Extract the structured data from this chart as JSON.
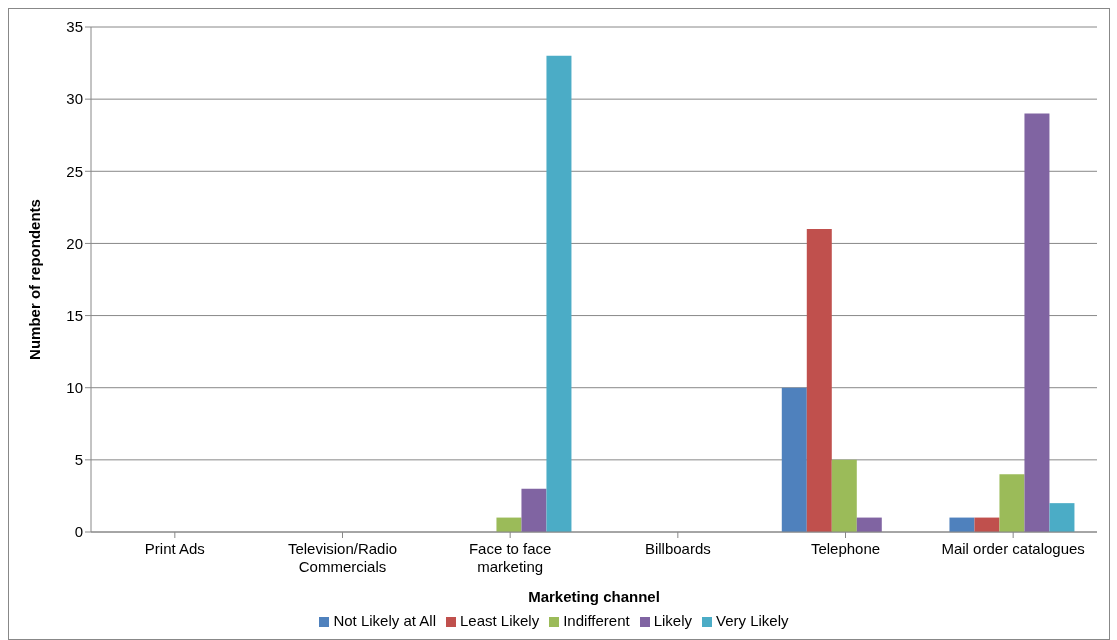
{
  "chart_data": {
    "type": "bar",
    "xlabel": "Marketing channel",
    "ylabel": "Number of repondents",
    "categories": [
      "Print Ads",
      "Television/Radio Commercials",
      "Face to face marketing",
      "Billboards",
      "Telephone",
      "Mail order catalogues"
    ],
    "series": [
      {
        "name": "Not Likely at All",
        "color": "#4f81bd",
        "values": [
          0,
          0,
          0,
          0,
          10,
          1
        ]
      },
      {
        "name": "Least Likely",
        "color": "#c0504d",
        "values": [
          0,
          0,
          0,
          0,
          21,
          1
        ]
      },
      {
        "name": "Indifferent",
        "color": "#9bbb59",
        "values": [
          0,
          0,
          1,
          0,
          5,
          4
        ]
      },
      {
        "name": "Likely",
        "color": "#8064a2",
        "values": [
          0,
          0,
          3,
          0,
          1,
          29
        ]
      },
      {
        "name": "Very Likely",
        "color": "#4bacc6",
        "values": [
          0,
          0,
          33,
          0,
          0,
          2
        ]
      }
    ],
    "ylim": [
      0,
      35
    ],
    "yticks": [
      0,
      5,
      10,
      15,
      20,
      25,
      30,
      35
    ],
    "grid": "y",
    "legend": "bottom"
  }
}
